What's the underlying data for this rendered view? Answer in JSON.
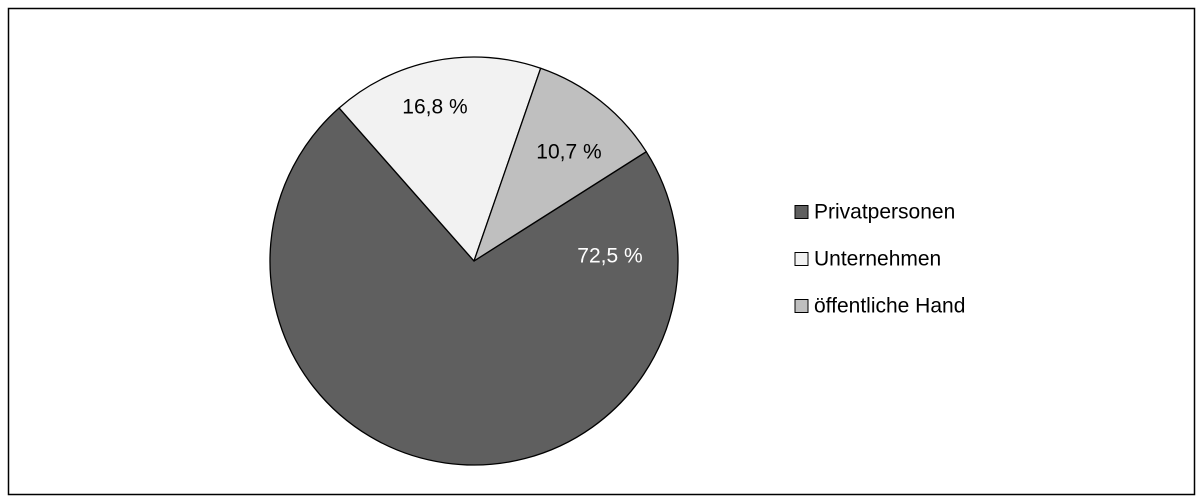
{
  "chart_data": {
    "type": "pie",
    "categories": [
      "Privatpersonen",
      "Unternehmen",
      "öffentliche Hand"
    ],
    "values": [
      72.5,
      16.8,
      10.7
    ],
    "labels": [
      "72,5 %",
      "16,8 %",
      "10,7 %"
    ],
    "colors": [
      "#5f5f5f",
      "#f2f2f2",
      "#bfbfbf"
    ],
    "label_colors": [
      "#ffffff",
      "#000000",
      "#000000"
    ],
    "legend_position": "right",
    "title": ""
  }
}
